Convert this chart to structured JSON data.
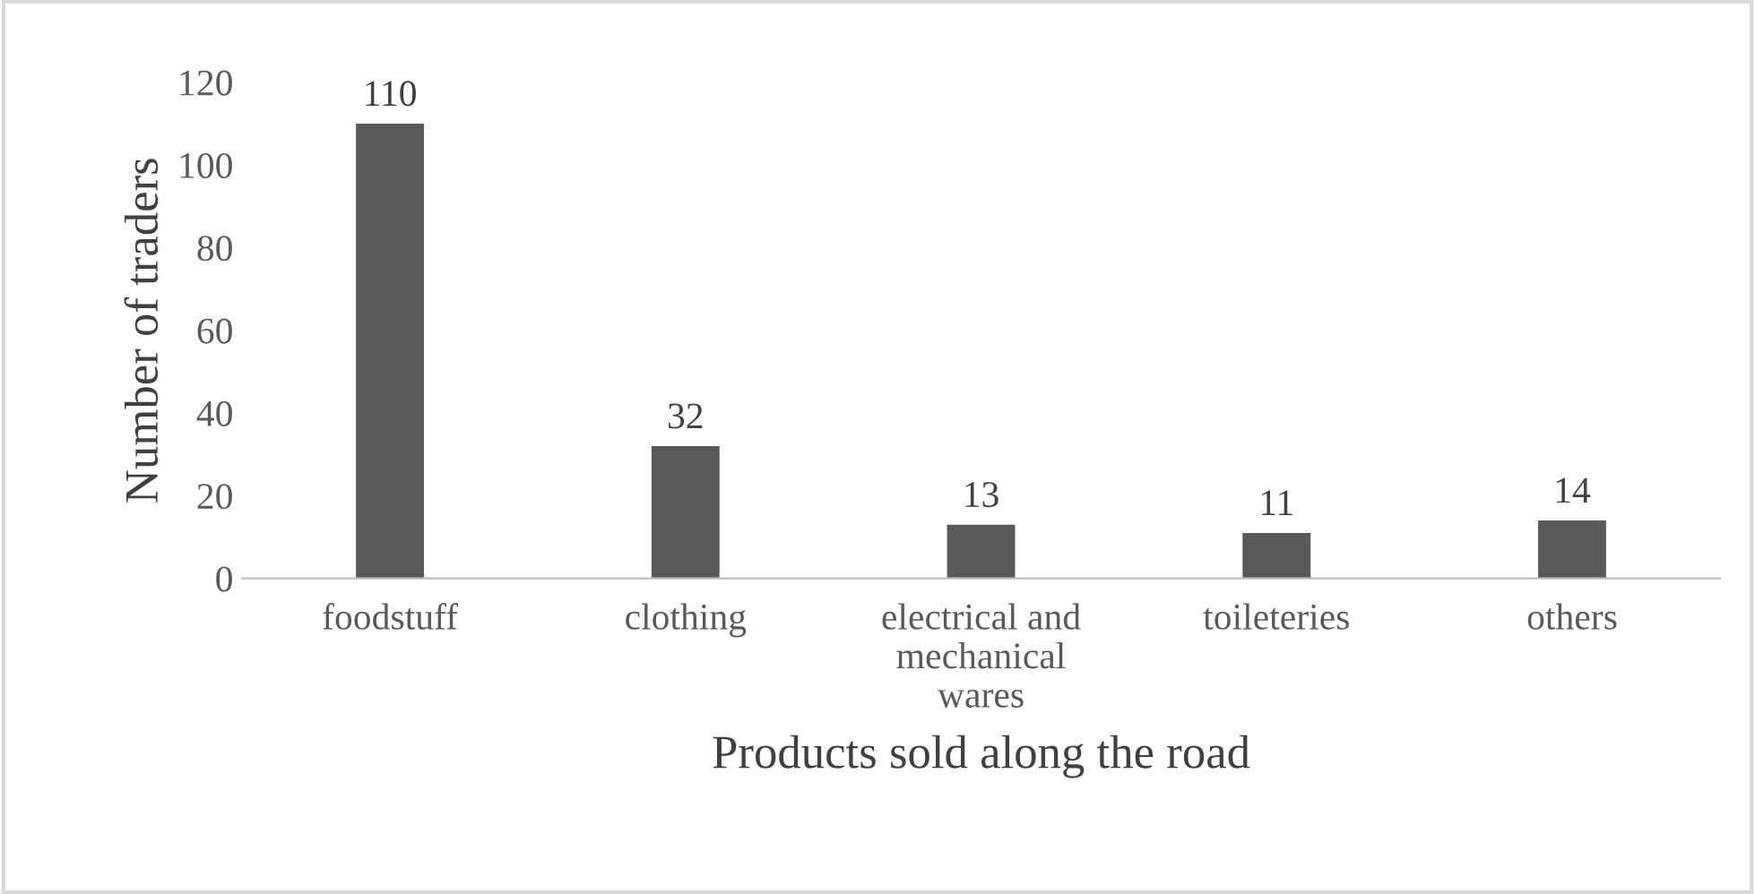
{
  "chart_data": {
    "type": "bar",
    "xlabel": "Products sold along the road",
    "ylabel": "Number of traders",
    "categories": [
      "foodstuff",
      "clothing",
      "electrical and\nmechanical\nwares",
      "toileteries",
      "others"
    ],
    "values": [
      110,
      32,
      13,
      11,
      14
    ],
    "color": "#595959",
    "ylim": [
      0,
      120
    ],
    "yticks": [
      0,
      20,
      40,
      60,
      80,
      100,
      120
    ],
    "grid": false,
    "data_labels": true
  }
}
